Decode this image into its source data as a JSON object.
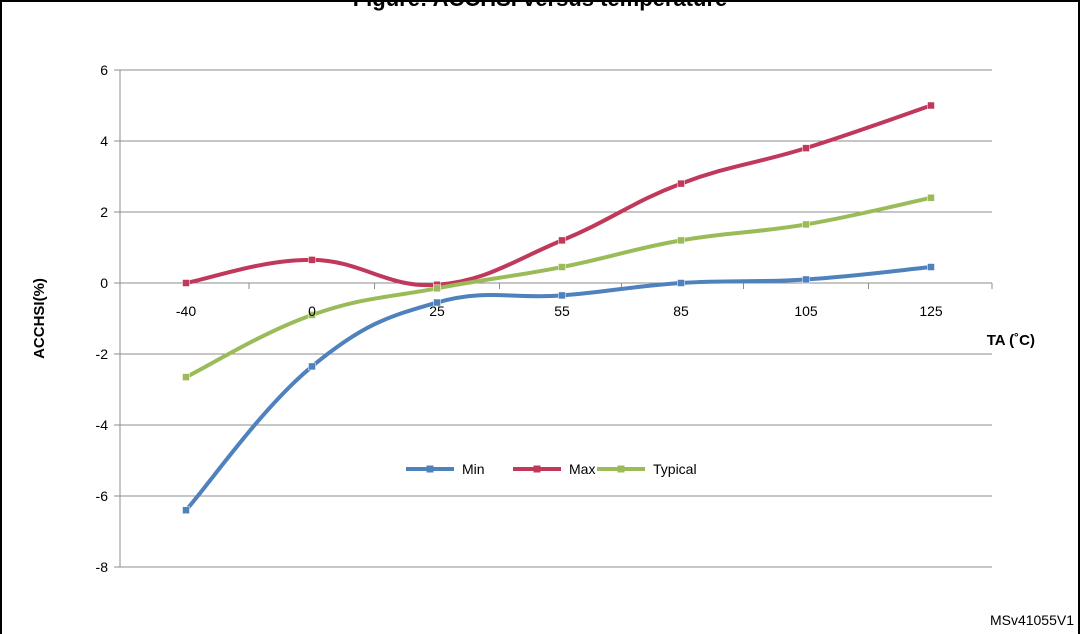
{
  "figure": {
    "title": "Figure: ACCHSI versus temperature",
    "watermark": "MSv41055V1"
  },
  "chart_data": {
    "type": "line",
    "title": "",
    "xlabel": "TA (˚C)",
    "ylabel": "ACCHSI(%)",
    "categories": [
      "-40",
      "0",
      "25",
      "55",
      "85",
      "105",
      "125"
    ],
    "yticks": [
      6,
      4,
      2,
      0,
      -2,
      -4,
      -6,
      -8
    ],
    "ylim": [
      -8,
      6
    ],
    "grid": true,
    "legend_position": "center-bottom",
    "series": [
      {
        "name": "Min",
        "color": "#4f81bd",
        "values": [
          -6.4,
          -2.35,
          -0.55,
          -0.35,
          0.0,
          0.1,
          0.45
        ]
      },
      {
        "name": "Max",
        "color": "#c0395a",
        "values": [
          0.0,
          0.65,
          -0.05,
          1.2,
          2.8,
          3.8,
          5.0
        ]
      },
      {
        "name": "Typical",
        "color": "#9bbb59",
        "values": [
          -2.65,
          -0.9,
          -0.15,
          0.45,
          1.2,
          1.65,
          2.4
        ]
      }
    ]
  }
}
